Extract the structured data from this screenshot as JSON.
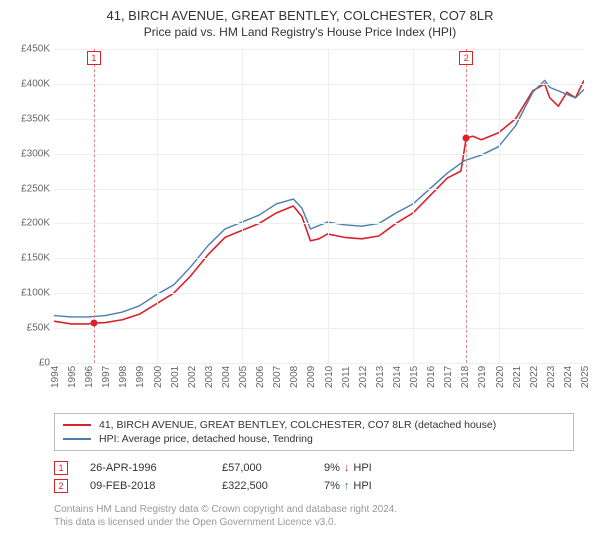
{
  "title": "41, BIRCH AVENUE, GREAT BENTLEY, COLCHESTER, CO7 8LR",
  "subtitle": "Price paid vs. HM Land Registry's House Price Index (HPI)",
  "chart": {
    "type": "line",
    "background_color": "#ffffff",
    "grid_color": "#eeeeee",
    "gridline_years": [
      2000,
      2005,
      2010,
      2015,
      2020
    ],
    "ylim": [
      0,
      450000
    ],
    "ytick_step": 50000,
    "yticks": [
      "£0",
      "£50K",
      "£100K",
      "£150K",
      "£200K",
      "£250K",
      "£300K",
      "£350K",
      "£400K",
      "£450K"
    ],
    "xlim": [
      1994,
      2025
    ],
    "xticks": [
      1994,
      1995,
      1996,
      1997,
      1998,
      1999,
      2000,
      2001,
      2002,
      2003,
      2004,
      2005,
      2006,
      2007,
      2008,
      2009,
      2010,
      2011,
      2012,
      2013,
      2014,
      2015,
      2016,
      2017,
      2018,
      2019,
      2020,
      2021,
      2022,
      2023,
      2024,
      2025
    ],
    "label_fontsize": 10,
    "series": [
      {
        "name": "property",
        "label": "41, BIRCH AVENUE, GREAT BENTLEY, COLCHESTER, CO7 8LR (detached house)",
        "color": "#d8232a",
        "line_width": 1.6,
        "points": [
          [
            1994.0,
            60000
          ],
          [
            1995.0,
            56000
          ],
          [
            1996.0,
            56000
          ],
          [
            1996.33,
            57000
          ],
          [
            1997.0,
            58000
          ],
          [
            1998.0,
            62000
          ],
          [
            1999.0,
            70000
          ],
          [
            2000.0,
            85000
          ],
          [
            2001.0,
            100000
          ],
          [
            2002.0,
            125000
          ],
          [
            2003.0,
            155000
          ],
          [
            2004.0,
            180000
          ],
          [
            2005.0,
            190000
          ],
          [
            2006.0,
            200000
          ],
          [
            2007.0,
            215000
          ],
          [
            2008.0,
            225000
          ],
          [
            2008.5,
            210000
          ],
          [
            2009.0,
            175000
          ],
          [
            2009.5,
            178000
          ],
          [
            2010.0,
            185000
          ],
          [
            2011.0,
            180000
          ],
          [
            2012.0,
            178000
          ],
          [
            2013.0,
            182000
          ],
          [
            2014.0,
            200000
          ],
          [
            2015.0,
            215000
          ],
          [
            2016.0,
            240000
          ],
          [
            2017.0,
            265000
          ],
          [
            2017.8,
            275000
          ],
          [
            2018.11,
            322500
          ],
          [
            2018.5,
            325000
          ],
          [
            2019.0,
            320000
          ],
          [
            2020.0,
            330000
          ],
          [
            2021.0,
            350000
          ],
          [
            2022.0,
            390000
          ],
          [
            2022.7,
            400000
          ],
          [
            2023.0,
            380000
          ],
          [
            2023.5,
            368000
          ],
          [
            2024.0,
            388000
          ],
          [
            2024.5,
            380000
          ],
          [
            2025.0,
            405000
          ]
        ]
      },
      {
        "name": "hpi",
        "label": "HPI: Average price, detached house, Tendring",
        "color": "#4a7fb0",
        "line_width": 1.4,
        "points": [
          [
            1994.0,
            68000
          ],
          [
            1995.0,
            66000
          ],
          [
            1996.0,
            66000
          ],
          [
            1997.0,
            68000
          ],
          [
            1998.0,
            73000
          ],
          [
            1999.0,
            82000
          ],
          [
            2000.0,
            98000
          ],
          [
            2001.0,
            112000
          ],
          [
            2002.0,
            138000
          ],
          [
            2003.0,
            168000
          ],
          [
            2004.0,
            192000
          ],
          [
            2005.0,
            202000
          ],
          [
            2006.0,
            212000
          ],
          [
            2007.0,
            228000
          ],
          [
            2008.0,
            235000
          ],
          [
            2008.5,
            222000
          ],
          [
            2009.0,
            192000
          ],
          [
            2010.0,
            202000
          ],
          [
            2011.0,
            198000
          ],
          [
            2012.0,
            196000
          ],
          [
            2013.0,
            200000
          ],
          [
            2014.0,
            215000
          ],
          [
            2015.0,
            228000
          ],
          [
            2016.0,
            250000
          ],
          [
            2017.0,
            272000
          ],
          [
            2018.0,
            290000
          ],
          [
            2019.0,
            298000
          ],
          [
            2020.0,
            310000
          ],
          [
            2021.0,
            340000
          ],
          [
            2022.0,
            388000
          ],
          [
            2022.7,
            405000
          ],
          [
            2023.0,
            395000
          ],
          [
            2024.0,
            385000
          ],
          [
            2024.5,
            380000
          ],
          [
            2025.0,
            392000
          ]
        ]
      }
    ],
    "markers": [
      {
        "id": "1",
        "year": 1996.33,
        "value": 57000,
        "color": "#d8232a",
        "dash_color": "#e48a8e"
      },
      {
        "id": "2",
        "year": 2018.11,
        "value": 322500,
        "color": "#d8232a",
        "dash_color": "#e48a8e"
      }
    ]
  },
  "legend": {
    "items": [
      {
        "color": "#d8232a",
        "label": "41, BIRCH AVENUE, GREAT BENTLEY, COLCHESTER, CO7 8LR (detached house)"
      },
      {
        "color": "#4a7fb0",
        "label": "HPI: Average price, detached house, Tendring"
      }
    ]
  },
  "annotations": [
    {
      "id": "1",
      "color": "#d8232a",
      "date": "26-APR-1996",
      "price": "£57,000",
      "delta_pct": "9%",
      "delta_dir": "down",
      "delta_label": "HPI"
    },
    {
      "id": "2",
      "color": "#d8232a",
      "date": "09-FEB-2018",
      "price": "£322,500",
      "delta_pct": "7%",
      "delta_dir": "up",
      "delta_label": "HPI"
    }
  ],
  "footer": {
    "line1": "Contains HM Land Registry data © Crown copyright and database right 2024.",
    "line2": "This data is licensed under the Open Government Licence v3.0."
  }
}
